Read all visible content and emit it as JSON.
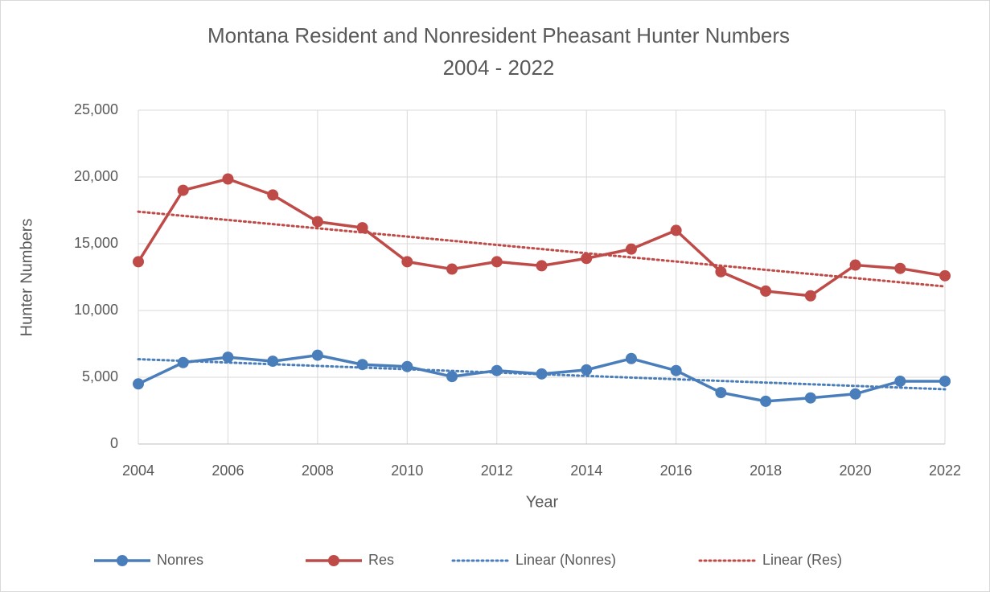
{
  "chart_data": {
    "type": "line",
    "title": "Montana Resident and Nonresident Pheasant Hunter Numbers",
    "subtitle": "2004 - 2022",
    "x_label": "Year",
    "y_label": "Hunter Numbers",
    "x": [
      2004,
      2005,
      2006,
      2007,
      2008,
      2009,
      2010,
      2011,
      2012,
      2013,
      2014,
      2015,
      2016,
      2017,
      2018,
      2019,
      2020,
      2021,
      2022
    ],
    "series": [
      {
        "name": "Nonres",
        "color": "#4a7ebb",
        "style": "solid",
        "markers": true,
        "values": [
          4500,
          6100,
          6500,
          6200,
          6650,
          5950,
          5800,
          5050,
          5500,
          5250,
          5550,
          6400,
          5500,
          3850,
          3200,
          3450,
          3750,
          4700,
          4700
        ]
      },
      {
        "name": "Res",
        "color": "#be4b48",
        "style": "solid",
        "markers": true,
        "values": [
          13650,
          19000,
          19850,
          18650,
          16650,
          16200,
          13650,
          13100,
          13650,
          13350,
          13900,
          14600,
          16000,
          12900,
          11450,
          11100,
          13400,
          13150,
          12600
        ]
      },
      {
        "name": "Linear (Nonres)",
        "color": "#4a7ebb",
        "style": "dotted",
        "markers": false,
        "x": [
          2004,
          2022
        ],
        "values": [
          6350,
          4100
        ]
      },
      {
        "name": "Linear (Res)",
        "color": "#be4b48",
        "style": "dotted",
        "markers": false,
        "x": [
          2004,
          2022
        ],
        "values": [
          17400,
          11800
        ]
      }
    ],
    "xlim": [
      2004,
      2022
    ],
    "xticks": [
      2004,
      2006,
      2008,
      2010,
      2012,
      2014,
      2016,
      2018,
      2020,
      2022
    ],
    "ylim": [
      0,
      25000
    ],
    "yticks": [
      0,
      {
        "value": 5000,
        "label": "5,000"
      },
      {
        "value": 10000,
        "label": "10,000"
      },
      {
        "value": 15000,
        "label": "15,000"
      },
      {
        "value": 20000,
        "label": "20,000"
      },
      {
        "value": 25000,
        "label": "25,000"
      }
    ],
    "grid": true,
    "legend": "bottom"
  }
}
